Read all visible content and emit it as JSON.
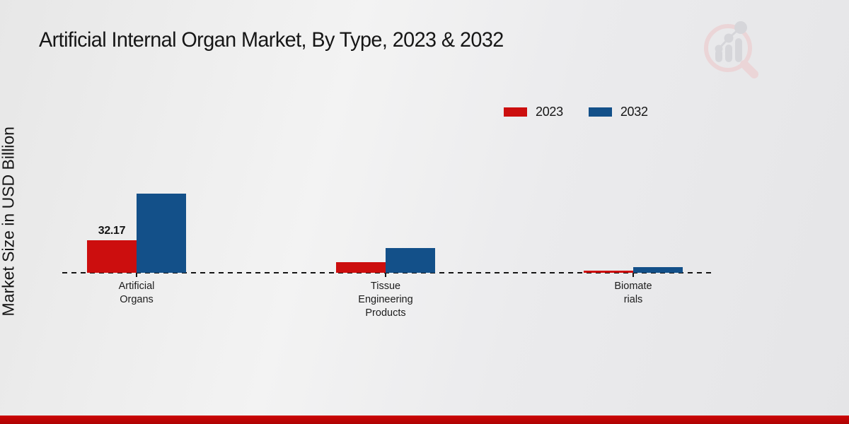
{
  "page": {
    "title": "Artificial Internal Organ Market, By Type, 2023 & 2032",
    "y_axis_label": "Market Size in USD Billion"
  },
  "legend": {
    "items": [
      {
        "label": "2023",
        "color": "#cc0e0e"
      },
      {
        "label": "2032",
        "color": "#135089"
      }
    ]
  },
  "chart_data": {
    "type": "bar",
    "title": "Artificial Internal Organ Market, By Type, 2023 & 2032",
    "xlabel": "",
    "ylabel": "Market Size in USD Billion",
    "categories": [
      "Artificial Organs",
      "Tissue Engineering Products",
      "Biomaterials"
    ],
    "category_label_lines": [
      [
        "Artificial",
        "Organs"
      ],
      [
        "Tissue",
        "Engineering",
        "Products"
      ],
      [
        "Biomate",
        "rials"
      ]
    ],
    "series": [
      {
        "name": "2023",
        "color": "#cc0e0e",
        "values": [
          32.17,
          10.5,
          2.2
        ]
      },
      {
        "name": "2032",
        "color": "#135089",
        "values": [
          78.5,
          24.6,
          5.6
        ]
      }
    ],
    "data_labels": [
      {
        "series_index": 0,
        "category_index": 0,
        "text": "32.17"
      }
    ],
    "ylim": [
      0,
      90
    ],
    "grid": false,
    "baseline_style": "dashed",
    "legend_position": "top-right"
  },
  "branding": {
    "logo_icon": "magnifier-bar-chart-watermark",
    "footer_accent_color": "#b80404"
  }
}
